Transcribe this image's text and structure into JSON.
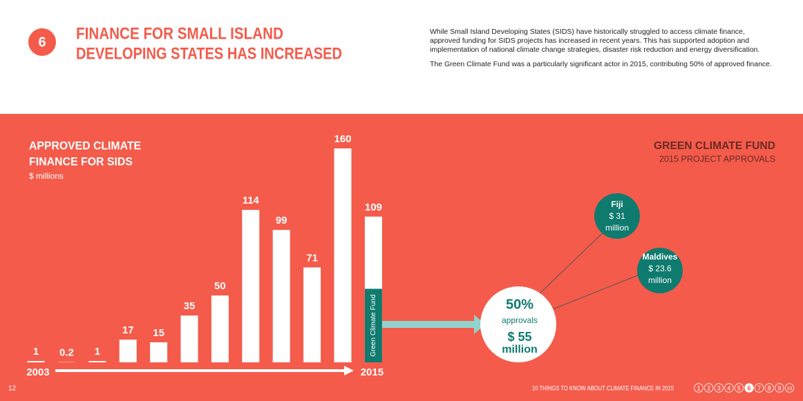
{
  "header": {
    "number": "6",
    "title": [
      "FINANCE FOR SMALL ISLAND",
      "DEVELOPING STATES HAS INCREASED"
    ],
    "paragraphs": [
      "While Small Island Developing States (SIDS) have historically struggled to access climate finance, approved funding for SIDS projects has increased in recent years. This has supported adoption and implementation of national climate change strategies, disaster risk reduction and energy diversification.",
      "The Green Climate Fund was a particularly significant actor in 2015, contributing 50% of approved finance."
    ]
  },
  "chart_data": {
    "type": "bar",
    "title": [
      "APPROVED CLIMATE",
      "FINANCE FOR SIDS"
    ],
    "subtitle": "$ millions",
    "categories": [
      "2003",
      null,
      null,
      null,
      null,
      null,
      null,
      null,
      null,
      null,
      null,
      "2015"
    ],
    "values": [
      1,
      0.2,
      1,
      17,
      15,
      35,
      50,
      114,
      99,
      71,
      160,
      109
    ],
    "color": "#ffffff",
    "ylim": [
      0,
      160
    ],
    "highlight": {
      "label": "Green Climate Fund",
      "value": 55,
      "color": "#0f7a6e"
    }
  },
  "gcf": {
    "title": "GREEN CLIMATE FUND",
    "subtitle": "2015 PROJECT APPROVALS",
    "total": {
      "share": "50%",
      "label": "approvals",
      "amount": "$ 55",
      "unit": "million"
    },
    "countries": [
      {
        "name": "Fiji",
        "amount": "$ 31",
        "unit": "million"
      },
      {
        "name": "Maldives",
        "amount": "$ 23.6",
        "unit": "million"
      }
    ]
  },
  "footer": {
    "page": "12",
    "text": "10 THINGS TO KNOW ABOUT CLIMATE FINANCE IN 2015",
    "pages": [
      "1",
      "2",
      "3",
      "4",
      "5",
      "6",
      "7",
      "8",
      "9",
      "10"
    ]
  }
}
